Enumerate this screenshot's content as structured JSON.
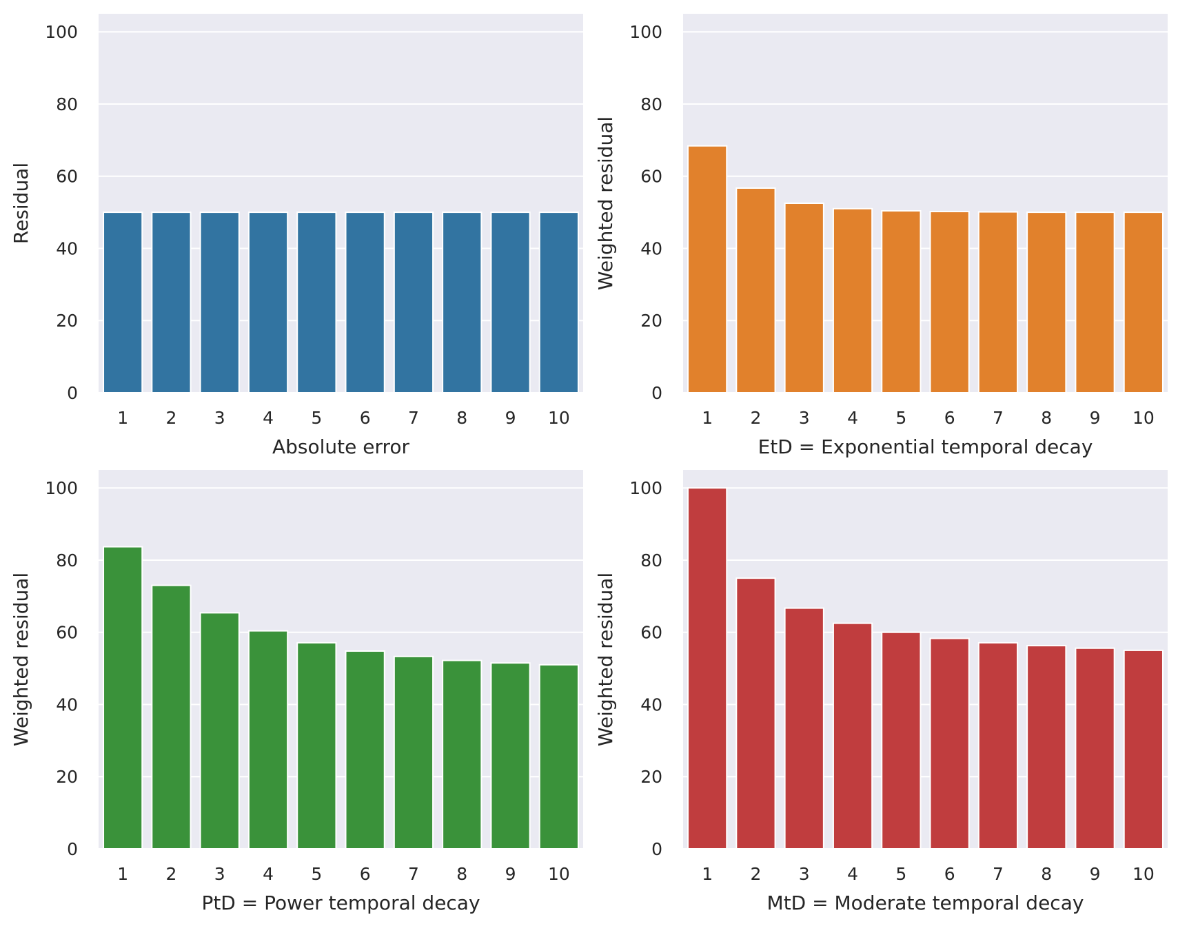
{
  "chart_data": [
    {
      "type": "bar",
      "categories": [
        "1",
        "2",
        "3",
        "4",
        "5",
        "6",
        "7",
        "8",
        "9",
        "10"
      ],
      "values": [
        50,
        50,
        50,
        50,
        50,
        50,
        50,
        50,
        50,
        50
      ],
      "title": "",
      "xlabel": "Absolute error",
      "ylabel": "Residual",
      "ylim": [
        0,
        105
      ],
      "yticks": [
        "0",
        "20",
        "40",
        "60",
        "80",
        "100"
      ],
      "color": "#3274a1",
      "grid": true
    },
    {
      "type": "bar",
      "categories": [
        "1",
        "2",
        "3",
        "4",
        "5",
        "6",
        "7",
        "8",
        "9",
        "10"
      ],
      "values": [
        68.4,
        56.7,
        52.5,
        51.0,
        50.4,
        50.2,
        50.1,
        50.0,
        50.0,
        50.0
      ],
      "title": "",
      "xlabel": "EtD = Exponential temporal decay",
      "ylabel": "Weighted residual",
      "ylim": [
        0,
        105
      ],
      "yticks": [
        "0",
        "20",
        "40",
        "60",
        "80",
        "100"
      ],
      "color": "#e1812c",
      "grid": true
    },
    {
      "type": "bar",
      "categories": [
        "1",
        "2",
        "3",
        "4",
        "5",
        "6",
        "7",
        "8",
        "9",
        "10"
      ],
      "values": [
        83.7,
        73.0,
        65.4,
        60.4,
        57.1,
        54.8,
        53.3,
        52.2,
        51.5,
        51.0
      ],
      "title": "",
      "xlabel": "PtD = Power temporal decay",
      "ylabel": "Weighted residual",
      "ylim": [
        0,
        105
      ],
      "yticks": [
        "0",
        "20",
        "40",
        "60",
        "80",
        "100"
      ],
      "color": "#3a923a",
      "grid": true
    },
    {
      "type": "bar",
      "categories": [
        "1",
        "2",
        "3",
        "4",
        "5",
        "6",
        "7",
        "8",
        "9",
        "10"
      ],
      "values": [
        100,
        75.0,
        66.7,
        62.5,
        60.0,
        58.3,
        57.1,
        56.3,
        55.6,
        55.0
      ],
      "title": "",
      "xlabel": "MtD = Moderate temporal decay",
      "ylabel": "Weighted residual",
      "ylim": [
        0,
        105
      ],
      "yticks": [
        "0",
        "20",
        "40",
        "60",
        "80",
        "100"
      ],
      "color": "#c03d3e",
      "grid": true
    }
  ]
}
